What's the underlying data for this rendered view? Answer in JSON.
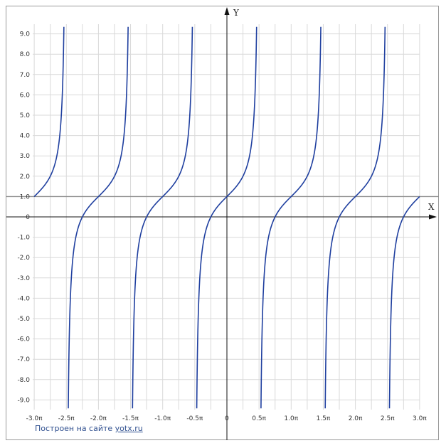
{
  "chart_data": {
    "type": "line",
    "title": "",
    "xlabel": "X",
    "ylabel": "Y",
    "xlim": [
      -3.0,
      3.0
    ],
    "xlim_unit": "pi",
    "ylim": [
      -9.5,
      9.5
    ],
    "x_ticks": [
      -3.0,
      -2.5,
      -2.0,
      -1.5,
      -1.0,
      -0.5,
      0,
      0.5,
      1.0,
      1.5,
      2.0,
      2.5,
      3.0
    ],
    "x_tick_labels": [
      "-3.0π",
      "-2.5π",
      "-2.0π",
      "-1.5π",
      "-1.0π",
      "-0.5π",
      "0",
      "0.5π",
      "1.0π",
      "1.5π",
      "2.0π",
      "2.5π",
      "3.0π"
    ],
    "y_ticks": [
      9,
      8,
      7,
      6,
      5,
      4,
      3,
      2,
      1,
      0,
      -1,
      -2,
      -3,
      -4,
      -5,
      -6,
      -7,
      -8,
      -9
    ],
    "y_tick_labels": [
      "9.0",
      "8.0",
      "7.0",
      "6.0",
      "5.0",
      "4.0",
      "3.0",
      "2.0",
      "1.0",
      "0",
      "-1.0",
      "-2.0",
      "-3.0",
      "-4.0",
      "-5.0",
      "-6.0",
      "-7.0",
      "-8.0",
      "-9.0"
    ],
    "grid": true,
    "horizontal_reference_line": 1.0,
    "period_pi": 1,
    "asymptotes_pi": [
      -2.5,
      -1.5,
      -0.5,
      0.5,
      1.5,
      2.5
    ],
    "series": [
      {
        "curve_color": "#1f3f9f",
        "points": [
          {
            "x": -3.0,
            "y": 1.0
          },
          {
            "x": -2.75,
            "y": 2.0
          },
          {
            "x": -2.5,
            "y": null
          },
          {
            "x": -2.25,
            "y": 0.0
          },
          {
            "x": -2.0,
            "y": 1.0
          },
          {
            "x": -1.75,
            "y": 2.0
          },
          {
            "x": -1.5,
            "y": null
          },
          {
            "x": -1.25,
            "y": 0.0
          },
          {
            "x": -1.0,
            "y": 1.0
          },
          {
            "x": -0.75,
            "y": 2.0
          },
          {
            "x": -0.5,
            "y": null
          },
          {
            "x": -0.25,
            "y": 0.0
          },
          {
            "x": 0.0,
            "y": 1.0
          },
          {
            "x": 0.25,
            "y": 2.0
          },
          {
            "x": 0.5,
            "y": null
          },
          {
            "x": 0.75,
            "y": 0.0
          },
          {
            "x": 1.0,
            "y": 1.0
          },
          {
            "x": 1.25,
            "y": 2.0
          },
          {
            "x": 1.5,
            "y": null
          },
          {
            "x": 1.75,
            "y": 0.0
          },
          {
            "x": 2.0,
            "y": 1.0
          },
          {
            "x": 2.25,
            "y": 2.0
          },
          {
            "x": 2.5,
            "y": null
          },
          {
            "x": 2.75,
            "y": 0.0
          },
          {
            "x": 3.0,
            "y": 1.0
          }
        ]
      }
    ]
  },
  "credit": {
    "text": "Построен на сайте",
    "link": "yotx.ru"
  },
  "colors": {
    "grid": "#d9d9d9",
    "axis": "#111111",
    "reference_line": "#8c8c8c",
    "curve": "#1f3f9f",
    "credit": "#2f4f8f"
  }
}
